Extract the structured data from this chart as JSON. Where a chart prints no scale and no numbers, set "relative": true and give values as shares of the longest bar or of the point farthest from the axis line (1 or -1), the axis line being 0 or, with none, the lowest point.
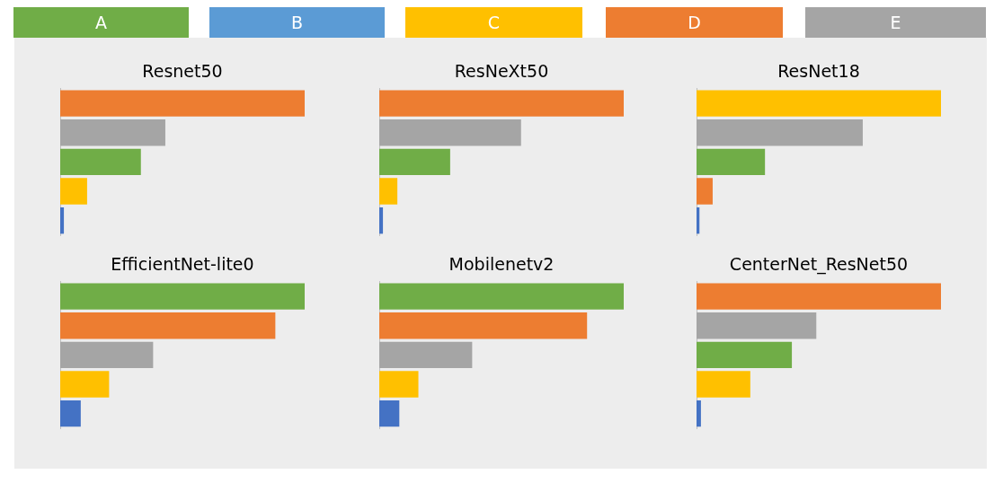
{
  "chart_data": [
    {
      "type": "other",
      "categories": [
        "A",
        "B",
        "C",
        "D",
        "E"
      ],
      "colors": [
        "#70ad47",
        "#5b9bd5",
        "#ffc000",
        "#ed7d31",
        "#a5a5a5"
      ]
    },
    {
      "type": "bar",
      "title": "Resnet50",
      "orientation": "horizontal",
      "relative": true,
      "categories": [
        null,
        null,
        null,
        null,
        null
      ],
      "values": [
        1,
        0.43,
        0.33,
        0.11,
        0.015
      ],
      "colors": [
        "#ed7d31",
        "#a5a5a5",
        "#70ad47",
        "#ffc000",
        "#4472c4"
      ]
    },
    {
      "type": "bar",
      "title": "ResNeXt50",
      "orientation": "horizontal",
      "relative": true,
      "categories": [
        null,
        null,
        null,
        null,
        null
      ],
      "values": [
        1,
        0.58,
        0.29,
        0.074,
        0.015
      ],
      "colors": [
        "#ed7d31",
        "#a5a5a5",
        "#70ad47",
        "#ffc000",
        "#4472c4"
      ]
    },
    {
      "type": "bar",
      "title": "ResNet18",
      "orientation": "horizontal",
      "relative": true,
      "categories": [
        null,
        null,
        null,
        null,
        null
      ],
      "values": [
        1,
        0.68,
        0.28,
        0.066,
        0.012
      ],
      "colors": [
        "#ffc000",
        "#a5a5a5",
        "#70ad47",
        "#ed7d31",
        "#4472c4"
      ]
    },
    {
      "type": "bar",
      "title": "EfficientNet-lite0",
      "orientation": "horizontal",
      "relative": true,
      "categories": [
        null,
        null,
        null,
        null,
        null
      ],
      "values": [
        1,
        0.88,
        0.38,
        0.2,
        0.084
      ],
      "colors": [
        "#70ad47",
        "#ed7d31",
        "#a5a5a5",
        "#ffc000",
        "#4472c4"
      ]
    },
    {
      "type": "bar",
      "title": "Mobilenetv2",
      "orientation": "horizontal",
      "relative": true,
      "categories": [
        null,
        null,
        null,
        null,
        null
      ],
      "values": [
        1,
        0.85,
        0.38,
        0.16,
        0.082
      ],
      "colors": [
        "#70ad47",
        "#ed7d31",
        "#a5a5a5",
        "#ffc000",
        "#4472c4"
      ]
    },
    {
      "type": "bar",
      "title": "CenterNet_ResNet50",
      "orientation": "horizontal",
      "relative": true,
      "categories": [
        null,
        null,
        null,
        null,
        null
      ],
      "values": [
        1,
        0.49,
        0.39,
        0.22,
        0.018
      ],
      "colors": [
        "#ed7d31",
        "#a5a5a5",
        "#70ad47",
        "#ffc000",
        "#4472c4"
      ]
    }
  ]
}
